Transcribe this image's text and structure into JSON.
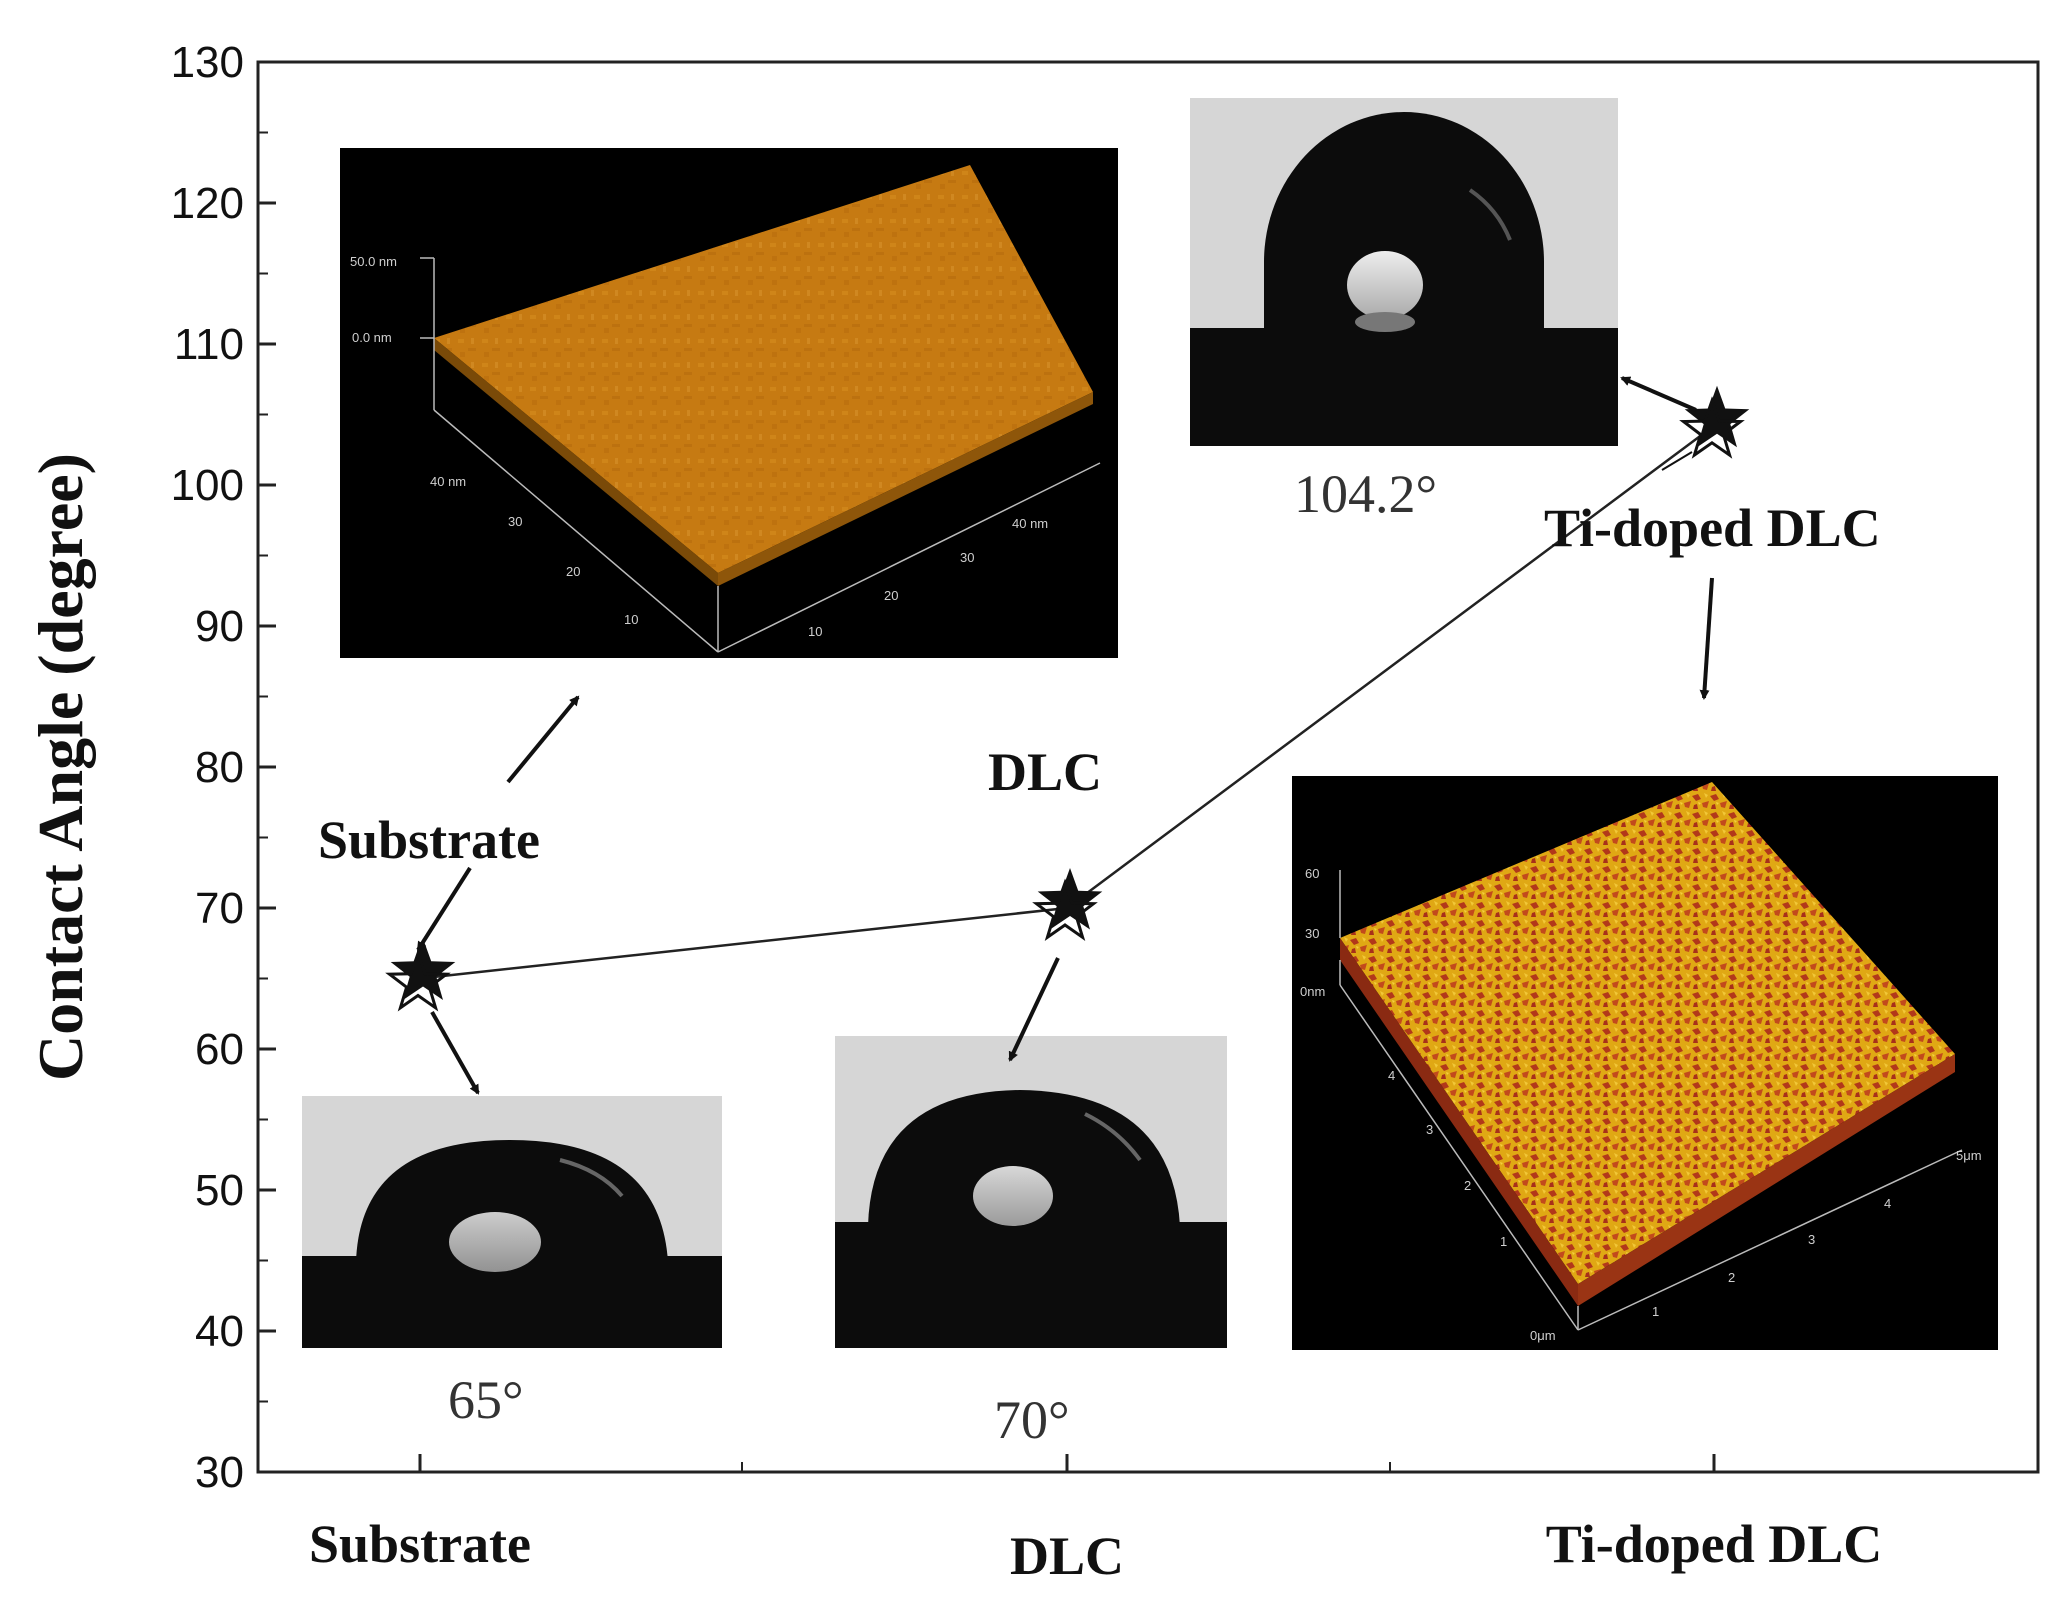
{
  "chart_data": {
    "type": "scatter",
    "title": "",
    "xlabel": "",
    "ylabel": "Contact Angle (degree)",
    "categories": [
      "Substrate",
      "DLC",
      "Ti-doped DLC"
    ],
    "series": [
      {
        "values": [
          65,
          70,
          104.2
        ],
        "marker": "star",
        "connected": true
      }
    ],
    "ylim": [
      30,
      130
    ],
    "yticks": [
      30,
      40,
      50,
      60,
      70,
      80,
      90,
      100,
      110,
      120,
      130
    ],
    "grid": false,
    "annotations": {
      "substrate_point_label": "Substrate",
      "dlc_point_label": "DLC",
      "ti_point_label": "Ti-doped DLC",
      "substrate_angle": "65°",
      "dlc_angle": "70°",
      "ti_angle": "104.2°"
    },
    "afm_substrate": {
      "z_ticks": [
        "50.0 nm",
        "0.0 nm"
      ],
      "y_axis_ticks": [
        "40",
        "30",
        "20",
        "10"
      ],
      "x_axis_ticks": [
        "10",
        "20",
        "30",
        "40"
      ],
      "y_unit_label": "40 nm",
      "x_unit_label": "40 nm"
    },
    "afm_ti": {
      "z_ticks": [
        "60",
        "30",
        "0nm"
      ],
      "y_axis_ticks": [
        "4",
        "3",
        "2",
        "1",
        "0μm"
      ],
      "x_axis_ticks": [
        "1",
        "2",
        "3",
        "4",
        "5μm"
      ]
    },
    "colors": {
      "axis": "#222222",
      "marker": "#111111",
      "afm_substrate_fill": "#c67a12",
      "afm_ti_fill": "#e0a814",
      "afm_ti_texture": "#b2381a",
      "droplet_background": "#d6d6d6",
      "droplet": "#0c0c0c"
    }
  }
}
